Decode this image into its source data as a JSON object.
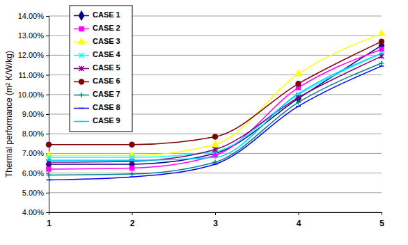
{
  "chart_data": {
    "type": "line",
    "y_label": "Thermal performance (m² K/W/kg)",
    "x": [
      1,
      2,
      3,
      4,
      5
    ],
    "xlim": [
      1,
      5
    ],
    "xticks": [
      1,
      2,
      3,
      4,
      5
    ],
    "ylim": [
      4,
      14
    ],
    "yticks": [
      {
        "value": 4,
        "label": "4.00%"
      },
      {
        "value": 5,
        "label": "5.00%"
      },
      {
        "value": 6,
        "label": "6.00%"
      },
      {
        "value": 7,
        "label": "7.00%"
      },
      {
        "value": 8,
        "label": "8.00%"
      },
      {
        "value": 9,
        "label": "9.00%"
      },
      {
        "value": 10,
        "label": "10.00%"
      },
      {
        "value": 11,
        "label": "11.00%"
      },
      {
        "value": 12,
        "label": "12.00%"
      },
      {
        "value": 13,
        "label": "13.00%"
      },
      {
        "value": 14,
        "label": "14.00%"
      }
    ],
    "grid": true,
    "legend": "upper left",
    "line_style": "smooth",
    "series": [
      {
        "name": "CASE 1",
        "color": "#000080",
        "marker": "diamond",
        "values": [
          6.45,
          6.45,
          7.0,
          9.8,
          12.5
        ]
      },
      {
        "name": "CASE 2",
        "color": "#ff00ff",
        "marker": "square",
        "values": [
          6.2,
          6.25,
          6.9,
          10.35,
          12.3
        ]
      },
      {
        "name": "CASE 3",
        "color": "#ffff00",
        "marker": "triangle",
        "values": [
          6.9,
          6.9,
          7.45,
          11.05,
          13.1
        ]
      },
      {
        "name": "CASE 4",
        "color": "#00ffff",
        "marker": "x",
        "values": [
          6.8,
          6.8,
          7.1,
          10.0,
          12.1
        ]
      },
      {
        "name": "CASE 5",
        "color": "#800080",
        "marker": "star",
        "values": [
          6.55,
          6.6,
          7.2,
          9.85,
          11.95
        ]
      },
      {
        "name": "CASE 6",
        "color": "#800000",
        "marker": "circle",
        "values": [
          7.45,
          7.45,
          7.85,
          10.55,
          12.7
        ]
      },
      {
        "name": "CASE 7",
        "color": "#008080",
        "marker": "plus",
        "values": [
          5.9,
          5.95,
          6.55,
          9.6,
          11.6
        ]
      },
      {
        "name": "CASE 8",
        "color": "#0000ff",
        "marker": "dash",
        "values": [
          5.65,
          5.8,
          6.45,
          9.4,
          11.45
        ]
      },
      {
        "name": "CASE 9",
        "color": "#00ccff",
        "marker": "dash",
        "values": [
          6.65,
          6.65,
          6.8,
          10.05,
          12.1
        ]
      }
    ]
  }
}
